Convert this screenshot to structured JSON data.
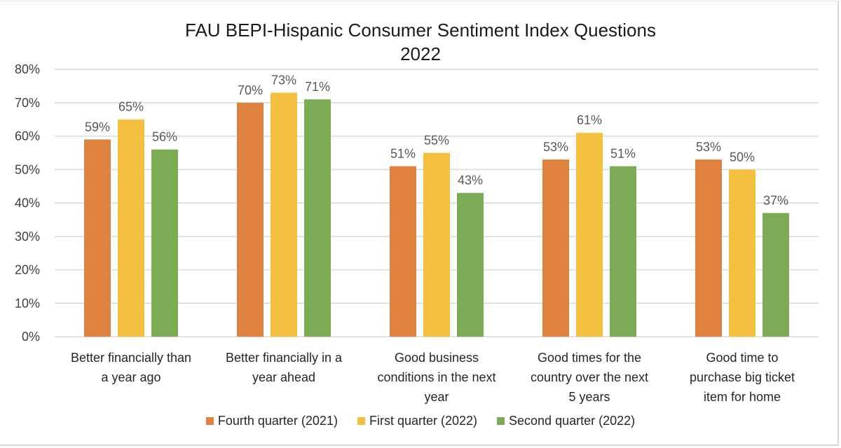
{
  "chart_data": {
    "type": "bar",
    "title": "FAU BEPI-Hispanic Consumer Sentiment Index Questions",
    "subtitle": "2022",
    "xlabel": "",
    "ylabel": "",
    "ylim": [
      0,
      80
    ],
    "yticks": [
      0,
      10,
      20,
      30,
      40,
      50,
      60,
      70,
      80
    ],
    "ytick_labels": [
      "0%",
      "10%",
      "20%",
      "30%",
      "40%",
      "50%",
      "60%",
      "70%",
      "80%"
    ],
    "grid": true,
    "legend_position": "bottom",
    "categories": [
      "Better financially than a year ago",
      "Better financially in a year ahead",
      "Good business conditions in the next year",
      "Good times for the country over the next 5 years",
      "Good time to purchase big ticket item for home"
    ],
    "category_lines": [
      [
        "Better financially than",
        "a year ago"
      ],
      [
        "Better financially in a",
        "year ahead"
      ],
      [
        "Good business",
        "conditions in the next",
        "year"
      ],
      [
        "Good times for the",
        "country over the next",
        "5 years"
      ],
      [
        "Good time to",
        "purchase big ticket",
        "item for home"
      ]
    ],
    "series": [
      {
        "name": "Fourth quarter (2021)",
        "color": "#e0823f",
        "values": [
          59,
          70,
          51,
          53,
          53
        ]
      },
      {
        "name": "First quarter (2022)",
        "color": "#f3c040",
        "values": [
          65,
          73,
          55,
          61,
          50
        ]
      },
      {
        "name": "Second quarter (2022)",
        "color": "#7cab55",
        "values": [
          56,
          71,
          43,
          51,
          37
        ]
      }
    ],
    "data_label_suffix": "%"
  },
  "colors": {
    "grid": "#d9d9d9",
    "tick_text": "#404040",
    "data_label": "#595959"
  }
}
